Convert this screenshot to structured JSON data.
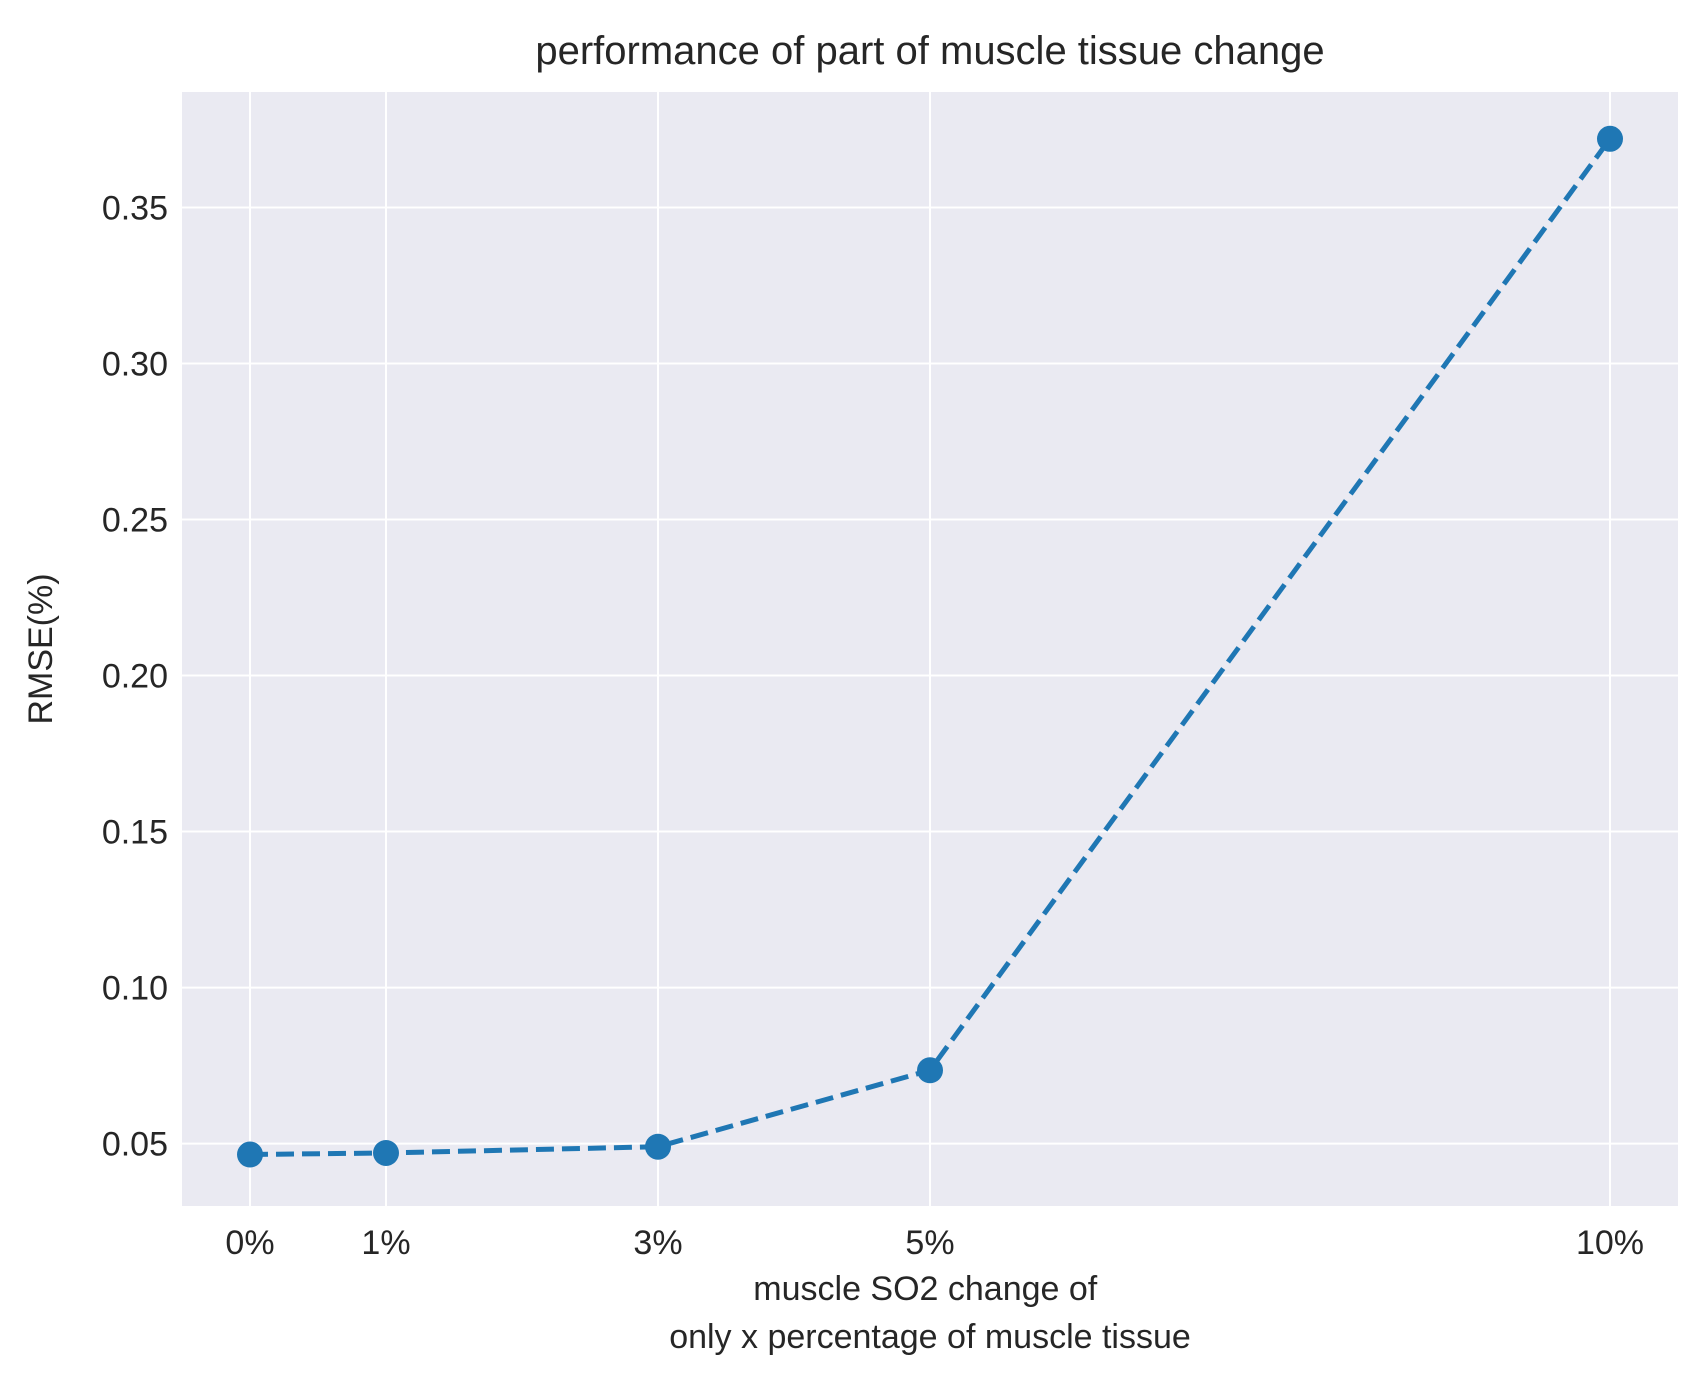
{
  "chart_data": {
    "type": "line",
    "title": "performance of part of muscle tissue change",
    "xlabel_lines": [
      "muscle SO2 change of",
      "only x percentage of muscle tissue"
    ],
    "ylabel": "RMSE(%)",
    "x": [
      0,
      1,
      3,
      5,
      10
    ],
    "x_tick_labels": [
      "0%",
      "1%",
      "3%",
      "5%",
      "10%"
    ],
    "xlim": [
      -0.5,
      10.5
    ],
    "y_ticks": [
      0.05,
      0.1,
      0.15,
      0.2,
      0.25,
      0.3,
      0.35
    ],
    "y_tick_labels": [
      "0.05",
      "0.10",
      "0.15",
      "0.20",
      "0.25",
      "0.30",
      "0.35"
    ],
    "ylim": [
      0.03,
      0.387
    ],
    "grid": true,
    "series": [
      {
        "values": [
          0.0465,
          0.047,
          0.049,
          0.0735,
          0.372
        ],
        "color": "#1f77b4",
        "line_style": "dashed",
        "marker": "circle"
      }
    ],
    "colors": {
      "plot_background": "#eaeaf2",
      "grid": "#ffffff",
      "text": "#262626"
    }
  }
}
